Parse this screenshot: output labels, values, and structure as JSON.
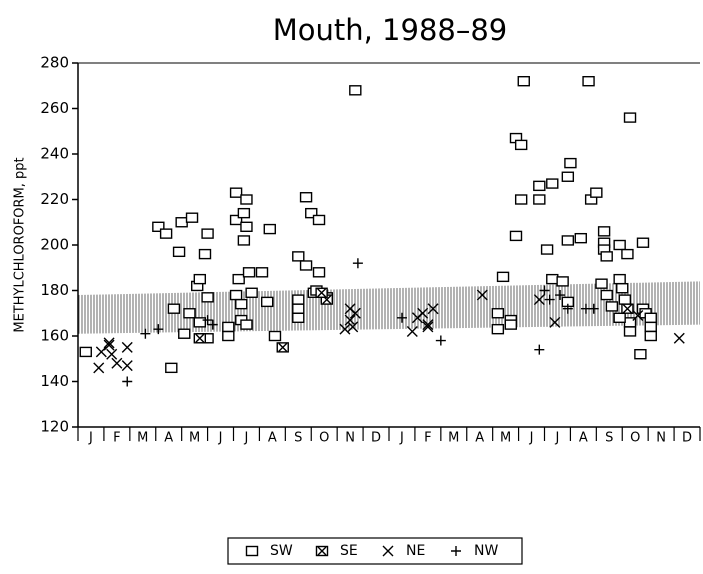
{
  "chart_data": {
    "type": "scatter",
    "title": "Mouth,      1988–89",
    "ylabel": "METHYLCHLOROFORM,  ppt",
    "categories": [
      "J",
      "F",
      "M",
      "A",
      "M",
      "J",
      "J",
      "A",
      "S",
      "O",
      "N",
      "D",
      "J",
      "F",
      "M",
      "A",
      "M",
      "J",
      "J",
      "A",
      "S",
      "O",
      "N",
      "D"
    ],
    "xlim": [
      0,
      24
    ],
    "xticks": [
      0,
      1,
      2,
      3,
      4,
      5,
      6,
      7,
      8,
      9,
      10,
      11,
      12,
      13,
      14,
      15,
      16,
      17,
      18,
      19,
      20,
      21,
      22,
      23,
      24
    ],
    "ylim": [
      120,
      280
    ],
    "yticks": [
      120,
      140,
      160,
      180,
      200,
      220,
      240,
      260,
      280
    ],
    "band": {
      "x": [
        0,
        24
      ],
      "lower": [
        161,
        165
      ],
      "upper": [
        178,
        184
      ]
    },
    "series": [
      {
        "name": "SW",
        "marker": "square",
        "color": "#000000",
        "x": [
          0.3,
          3.1,
          3.4,
          3.9,
          4.0,
          4.4,
          4.9,
          5.0,
          3.6,
          3.7,
          4.1,
          4.3,
          4.6,
          4.7,
          4.7,
          4.8,
          5.0,
          5.0,
          5.8,
          5.8,
          6.1,
          6.1,
          6.4,
          6.5,
          6.5,
          6.4,
          6.2,
          6.1,
          6.3,
          6.3,
          6.6,
          6.5,
          6.7,
          7.1,
          7.4,
          7.3,
          7.6,
          8.8,
          8.5,
          8.8,
          9.0,
          9.3,
          9.3,
          8.5,
          8.5,
          8.5,
          9.1,
          9.2,
          9.6,
          10.7,
          16.4,
          16.2,
          16.2,
          16.7,
          16.7,
          17.2,
          16.9,
          17.1,
          17.1,
          16.9,
          17.8,
          17.8,
          18.3,
          18.9,
          19.0,
          18.1,
          18.9,
          19.4,
          18.3,
          18.7,
          18.9,
          19.8,
          19.7,
          20.0,
          20.3,
          20.3,
          20.3,
          20.4,
          20.2,
          20.4,
          20.9,
          21.2,
          21.3,
          21.8,
          20.9,
          21.0,
          21.1,
          21.2,
          21.3,
          21.3,
          21.7,
          21.8,
          21.9,
          22.1,
          22.1,
          22.1,
          20.6,
          20.9
        ],
        "values": [
          153,
          208,
          205,
          197,
          210,
          212,
          196,
          205,
          146,
          172,
          161,
          170,
          182,
          185,
          166,
          159,
          159,
          177,
          160,
          164,
          223,
          211,
          214,
          220,
          208,
          202,
          185,
          178,
          174,
          167,
          188,
          165,
          179,
          188,
          207,
          175,
          160,
          221,
          195,
          191,
          214,
          211,
          188,
          176,
          172,
          168,
          179,
          180,
          177,
          268,
          186,
          170,
          163,
          167,
          165,
          272,
          247,
          244,
          220,
          204,
          226,
          220,
          227,
          230,
          236,
          198,
          202,
          203,
          185,
          184,
          175,
          220,
          272,
          223,
          206,
          201,
          198,
          195,
          183,
          178,
          200,
          196,
          256,
          201,
          185,
          181,
          176,
          172,
          166,
          162,
          152,
          172,
          170,
          164,
          160,
          168,
          173,
          168
        ]
      },
      {
        "name": "SE",
        "marker": "boxed-x",
        "color": "#000000",
        "x": [
          4.7,
          7.9,
          9.6,
          9.4
        ],
        "values": [
          159,
          155,
          176,
          179
        ]
      },
      {
        "name": "NE",
        "marker": "x",
        "color": "#000000",
        "x": [
          0.8,
          0.9,
          1.2,
          1.3,
          1.5,
          1.9,
          1.9,
          1.2,
          10.3,
          10.5,
          10.5,
          10.6,
          10.7,
          12.9,
          13.1,
          13.3,
          13.5,
          13.7,
          13.5,
          15.6,
          17.8,
          18.4,
          21.2,
          21.6,
          23.2
        ],
        "values": [
          146,
          153,
          156,
          152,
          148,
          155,
          147,
          157,
          163,
          167,
          172,
          164,
          170,
          162,
          168,
          170,
          165,
          172,
          164,
          178,
          176,
          166,
          172,
          169,
          159
        ]
      },
      {
        "name": "NW",
        "marker": "plus",
        "color": "#000000",
        "x": [
          1.9,
          2.6,
          3.1,
          5.0,
          5.2,
          10.8,
          12.5,
          14.0,
          17.8,
          18.0,
          18.2,
          18.6,
          18.9,
          19.6,
          19.9
        ],
        "values": [
          140,
          161,
          163,
          167,
          165,
          192,
          168,
          158,
          154,
          180,
          176,
          178,
          172,
          172,
          172
        ]
      }
    ]
  }
}
